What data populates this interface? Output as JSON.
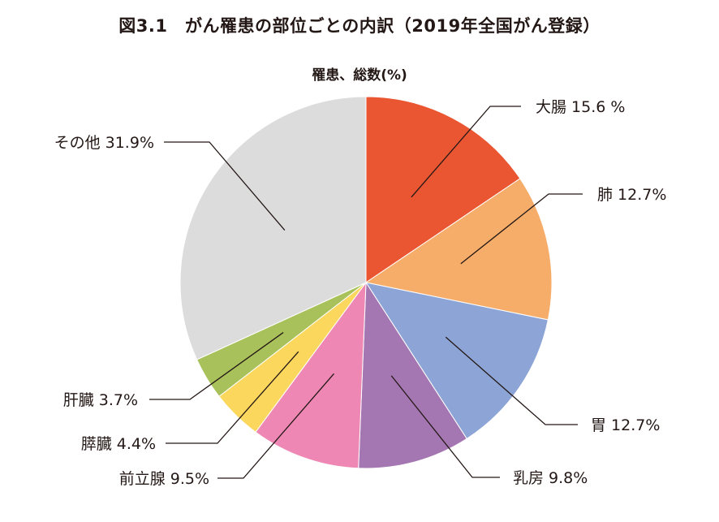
{
  "title": "図3.1　がん罹患の部位ごとの内訳（2019年全国がん登録）",
  "chart_data": {
    "type": "pie",
    "title": "罹患、総数(%)",
    "start_angle_deg": 0,
    "direction": "clockwise",
    "slices": [
      {
        "label": "大腸",
        "value": 15.6,
        "display": "大腸 15.6 %",
        "color": "#EA5532"
      },
      {
        "label": "肺",
        "value": 12.7,
        "display": "肺 12.7%",
        "color": "#F6AD6A"
      },
      {
        "label": "胃",
        "value": 12.7,
        "display": "胃 12.7%",
        "color": "#8DA5D6"
      },
      {
        "label": "乳房",
        "value": 9.8,
        "display": "乳房 9.8%",
        "color": "#A477B2"
      },
      {
        "label": "前立腺",
        "value": 9.5,
        "display": "前立腺 9.5%",
        "color": "#EE87B4"
      },
      {
        "label": "膵臓",
        "value": 4.4,
        "display": "膵臓 4.4%",
        "color": "#FCD75D"
      },
      {
        "label": "肝臓",
        "value": 3.7,
        "display": "肝臓 3.7%",
        "color": "#A9C15B"
      },
      {
        "label": "その他",
        "value": 31.9,
        "display": "その他 31.9%",
        "color": "#DCDCDD"
      }
    ]
  }
}
